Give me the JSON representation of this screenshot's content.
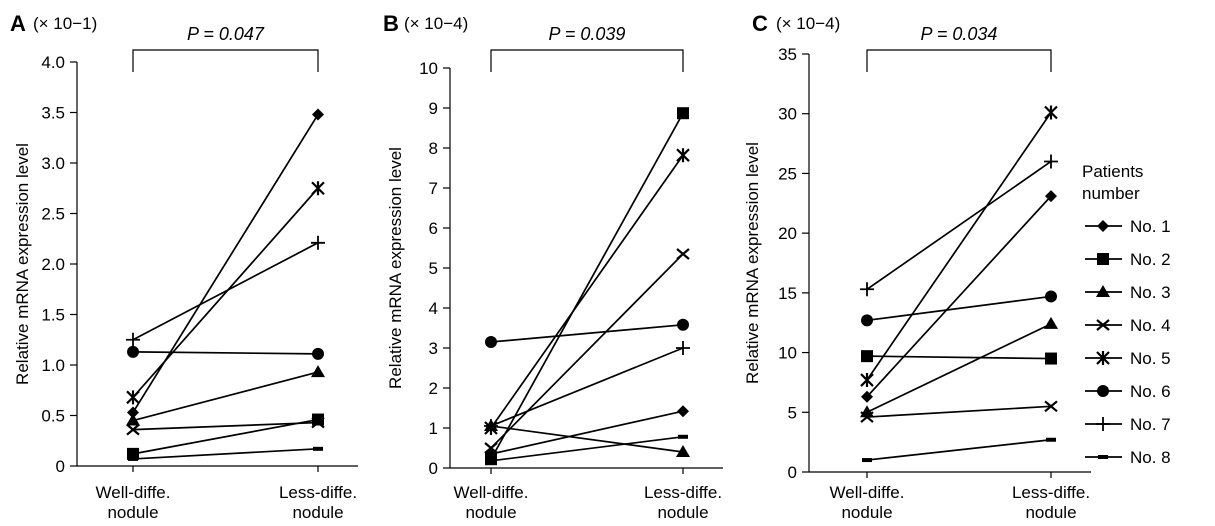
{
  "figure": {
    "legend_title": [
      "Patients",
      "number"
    ],
    "legend_entries": [
      "No. 1",
      "No. 2",
      "No. 3",
      "No. 4",
      "No. 5",
      "No. 6",
      "No. 7",
      "No. 8"
    ],
    "marker_styles": [
      "diamond",
      "square",
      "triangle",
      "x",
      "asterisk",
      "circle",
      "plus",
      "dash"
    ],
    "line_color": "#000000"
  },
  "chart_data": [
    {
      "type": "line",
      "panel_label": "A",
      "scale_note": "(× 10−1)",
      "p_value_label": "P = 0.047",
      "ylabel": "Relative mRNA expression level",
      "categories": [
        [
          "Well-diffe.",
          "nodule"
        ],
        [
          "Less-diffe.",
          "nodule"
        ]
      ],
      "ylim": [
        0,
        4.0
      ],
      "yticks": [
        "0",
        "0.5",
        "1.0",
        "1.5",
        "2.0",
        "2.5",
        "3.0",
        "3.5",
        "4.0"
      ],
      "series": [
        {
          "name": "No. 1",
          "values": [
            0.53,
            3.48
          ]
        },
        {
          "name": "No. 2",
          "values": [
            0.12,
            0.46
          ]
        },
        {
          "name": "No. 3",
          "values": [
            0.45,
            0.93
          ]
        },
        {
          "name": "No. 4",
          "values": [
            0.36,
            0.43
          ]
        },
        {
          "name": "No. 5",
          "values": [
            0.68,
            2.75
          ]
        },
        {
          "name": "No. 6",
          "values": [
            1.13,
            1.11
          ]
        },
        {
          "name": "No. 7",
          "values": [
            1.25,
            2.21
          ]
        },
        {
          "name": "No. 8",
          "values": [
            0.07,
            0.17
          ]
        }
      ]
    },
    {
      "type": "line",
      "panel_label": "B",
      "scale_note": "(× 10−4)",
      "p_value_label": "P = 0.039",
      "ylabel": "Relative mRNA expression level",
      "categories": [
        [
          "Well-diffe.",
          "nodule"
        ],
        [
          "Less-diffe.",
          "nodule"
        ]
      ],
      "ylim": [
        0,
        10
      ],
      "yticks": [
        "0",
        "1",
        "2",
        "3",
        "4",
        "5",
        "6",
        "7",
        "8",
        "9",
        "10"
      ],
      "series": [
        {
          "name": "No. 1",
          "values": [
            0.35,
            1.42
          ]
        },
        {
          "name": "No. 2",
          "values": [
            0.22,
            8.87
          ]
        },
        {
          "name": "No. 3",
          "values": [
            1.05,
            0.4
          ]
        },
        {
          "name": "No. 4",
          "values": [
            0.5,
            5.35
          ]
        },
        {
          "name": "No. 5",
          "values": [
            1.0,
            7.82
          ]
        },
        {
          "name": "No. 6",
          "values": [
            3.15,
            3.58
          ]
        },
        {
          "name": "No. 7",
          "values": [
            1.05,
            3.0
          ]
        },
        {
          "name": "No. 8",
          "values": [
            0.18,
            0.78
          ]
        }
      ]
    },
    {
      "type": "line",
      "panel_label": "C",
      "scale_note": "(× 10−4)",
      "p_value_label": "P = 0.034",
      "ylabel": "Relative mRNA expression level",
      "categories": [
        [
          "Well-diffe.",
          "nodule"
        ],
        [
          "Less-diffe.",
          "nodule"
        ]
      ],
      "ylim": [
        0,
        35
      ],
      "yticks": [
        "0",
        "5",
        "10",
        "15",
        "20",
        "25",
        "30",
        "35"
      ],
      "series": [
        {
          "name": "No. 1",
          "values": [
            6.3,
            23.1
          ]
        },
        {
          "name": "No. 2",
          "values": [
            9.7,
            9.5
          ]
        },
        {
          "name": "No. 3",
          "values": [
            5.0,
            12.4
          ]
        },
        {
          "name": "No. 4",
          "values": [
            4.6,
            5.5
          ]
        },
        {
          "name": "No. 5",
          "values": [
            7.7,
            30.1
          ]
        },
        {
          "name": "No. 6",
          "values": [
            12.7,
            14.7
          ]
        },
        {
          "name": "No. 7",
          "values": [
            15.3,
            26.0
          ]
        },
        {
          "name": "No. 8",
          "values": [
            1.0,
            2.7
          ]
        }
      ]
    }
  ]
}
